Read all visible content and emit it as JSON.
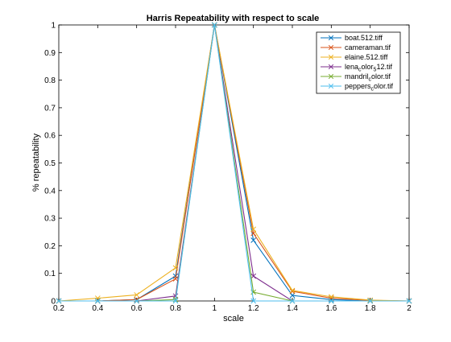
{
  "chart_data": {
    "type": "line",
    "title": "Harris Repeatability with respect to scale",
    "xlabel": "scale",
    "ylabel": "% repeatability",
    "xlim": [
      0.2,
      2
    ],
    "ylim": [
      0,
      1
    ],
    "x_ticks": [
      "0.2",
      "0.4",
      "0.6",
      "0.8",
      "1",
      "1.2",
      "1.4",
      "1.6",
      "1.8",
      "2"
    ],
    "y_ticks": [
      "0",
      "0.1",
      "0.2",
      "0.3",
      "0.4",
      "0.5",
      "0.6",
      "0.7",
      "0.8",
      "0.9",
      "1"
    ],
    "grid": false,
    "legend_position": "top-right",
    "marker": "x",
    "x": [
      0.2,
      0.4,
      0.6,
      0.8,
      1.0,
      1.2,
      1.4,
      1.6,
      1.8,
      2.0
    ],
    "series": [
      {
        "name": "boat.512.tiff",
        "color": "#0072BD",
        "values": [
          0,
          0,
          0.005,
          0.09,
          1.0,
          0.22,
          0.02,
          0.005,
          0,
          0
        ]
      },
      {
        "name": "cameraman.tif",
        "color": "#D95319",
        "values": [
          0,
          0,
          0.005,
          0.08,
          1.0,
          0.245,
          0.035,
          0.01,
          0.002,
          0
        ]
      },
      {
        "name": "elaine.512.tiff",
        "color": "#EDB120",
        "values": [
          0,
          0.01,
          0.022,
          0.12,
          1.0,
          0.26,
          0.038,
          0.015,
          0.003,
          0
        ]
      },
      {
        "name": "lena_color_512.tif",
        "color": "#7E2F8E",
        "values": [
          0,
          0,
          0,
          0.018,
          1.0,
          0.09,
          0,
          0,
          0,
          0
        ]
      },
      {
        "name": "mandril_color.tif",
        "color": "#77AC30",
        "values": [
          0,
          0,
          0,
          0.005,
          1.0,
          0.032,
          0,
          0,
          0,
          0
        ]
      },
      {
        "name": "peppers_color.tif",
        "color": "#4DBEEE",
        "values": [
          0,
          0,
          0,
          0,
          1.0,
          0,
          0,
          0,
          0,
          0
        ]
      }
    ],
    "legend_labels": [
      {
        "base": "boat.512.tiff",
        "sub": "",
        "tail": ""
      },
      {
        "base": "cameraman.tif",
        "sub": "",
        "tail": ""
      },
      {
        "base": "elaine.512.tiff",
        "sub": "",
        "tail": ""
      },
      {
        "base": "lena",
        "sub": "c",
        "tail": "olor",
        "sub2": "5",
        "tail2": "12.tif"
      },
      {
        "base": "mandril",
        "sub": "c",
        "tail": "olor.tif"
      },
      {
        "base": "peppers",
        "sub": "c",
        "tail": "olor.tif"
      }
    ]
  }
}
